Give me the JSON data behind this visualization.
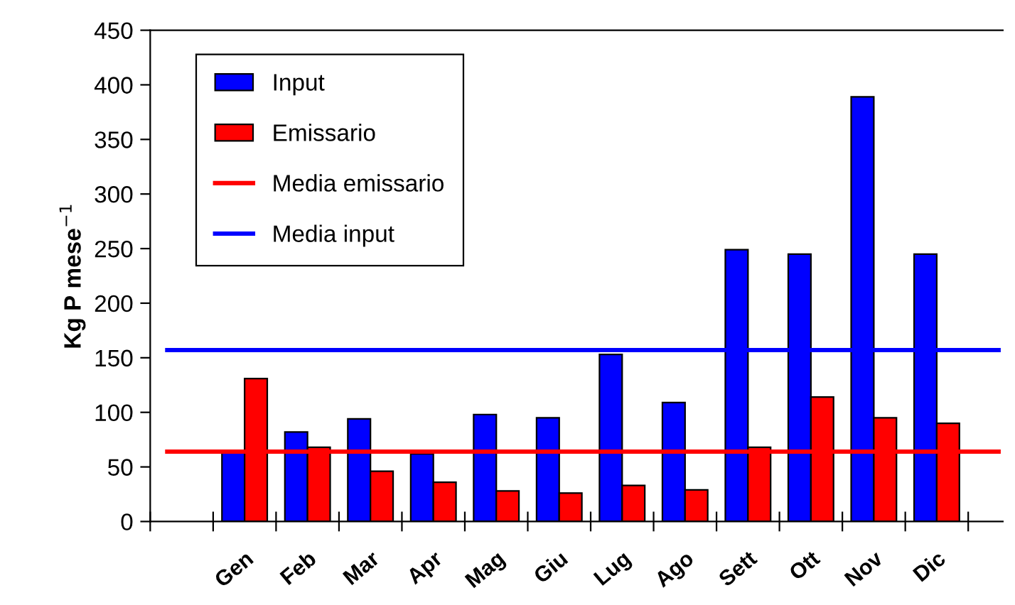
{
  "chart_data": {
    "type": "bar",
    "ylabel": "Kg P mese$^{−1}$",
    "categories": [
      null,
      "Gen",
      "Feb",
      "Mar",
      "Apr",
      "Mag",
      "Giu",
      "Lug",
      "Ago",
      "Sett",
      "Ott",
      "Nov",
      "Dic"
    ],
    "series": [
      {
        "name": "Input",
        "color": "#0000ff",
        "values": [
          null,
          63,
          82,
          94,
          62,
          98,
          95,
          153,
          109,
          249,
          245,
          389,
          245
        ]
      },
      {
        "name": "Emissario",
        "color": "#ff0000",
        "values": [
          null,
          131,
          68,
          46,
          36,
          28,
          26,
          33,
          29,
          68,
          114,
          95,
          90
        ]
      }
    ],
    "ref_lines": [
      {
        "axis": "y",
        "value": 64,
        "label": "Media emissario",
        "color": "#ff0000"
      },
      {
        "axis": "y",
        "value": 157,
        "label": "Media input",
        "color": "#0000ff"
      }
    ],
    "ylim": [
      0,
      450
    ],
    "yticks": [
      0,
      50,
      100,
      150,
      200,
      250,
      300,
      350,
      400,
      450
    ],
    "legend": "top left",
    "grid": false
  }
}
